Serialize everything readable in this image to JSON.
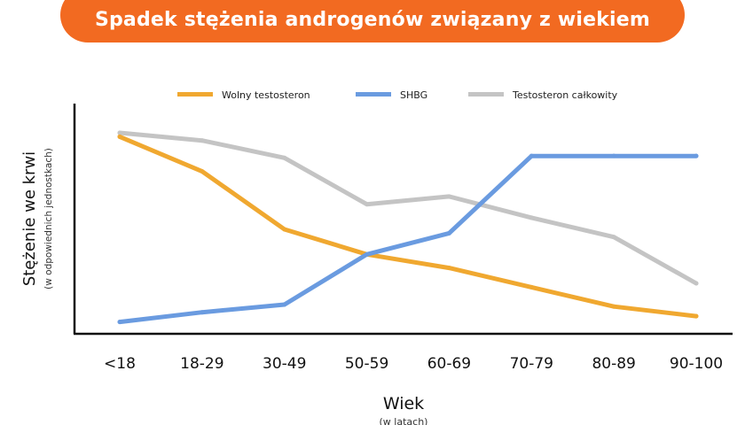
{
  "chart_data": {
    "type": "line",
    "title": "Spadek stężenia androgenów związany z wiekiem",
    "xlabel": "Wiek",
    "xlabel_sub": "(w latach)",
    "ylabel": "Stężenie we krwi",
    "ylabel_sub": "(w odpowiednich jednostkach)",
    "categories": [
      "<18",
      "18-29",
      "30-49",
      "50-59",
      "60-69",
      "70-79",
      "80-89",
      "90-100"
    ],
    "ylim": [
      0,
      100
    ],
    "grid": false,
    "legend_position": "top",
    "series": [
      {
        "name": "Wolny testosteron",
        "color": "#f0a830",
        "values": [
          98,
          80,
          50,
          37,
          30,
          20,
          10,
          5
        ]
      },
      {
        "name": "SHBG",
        "color": "#6a9be0",
        "values": [
          2,
          7,
          11,
          37,
          48,
          88,
          88,
          88
        ]
      },
      {
        "name": "Testosteron całkowity",
        "color": "#c4c4c4",
        "values": [
          100,
          96,
          87,
          63,
          67,
          56,
          46,
          22
        ]
      }
    ]
  }
}
